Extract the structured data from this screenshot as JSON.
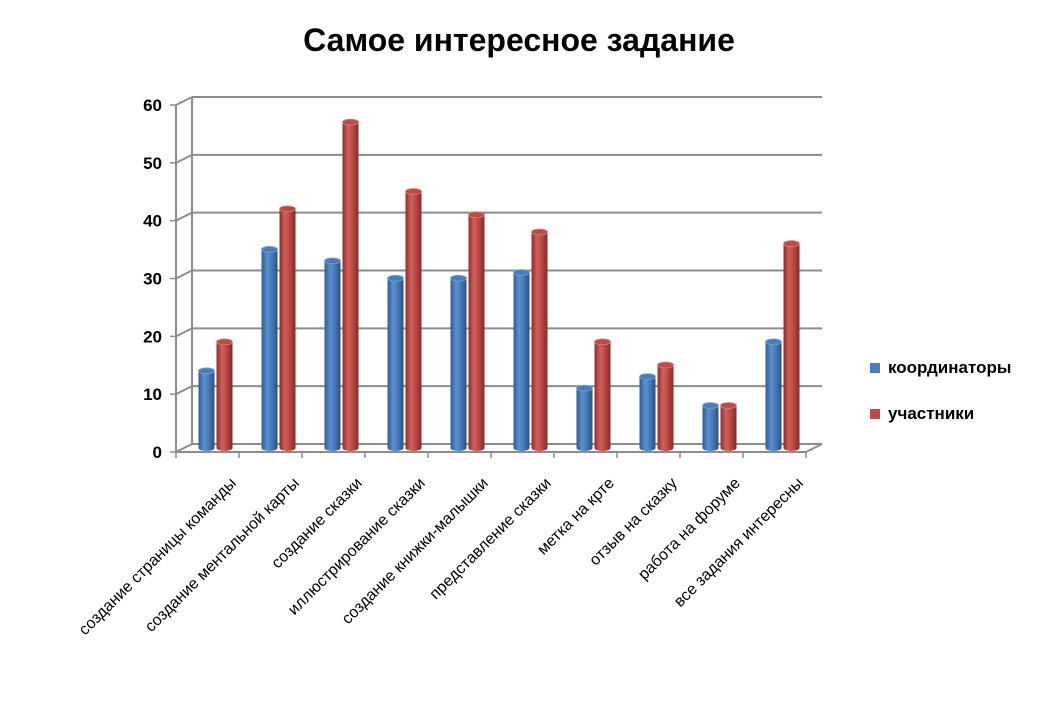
{
  "chart_data": {
    "type": "bar",
    "title": "Самое интересное задание",
    "categories": [
      "создание страницы команды",
      "создание ментальной карты",
      "создание сказки",
      "иллюстрирование сказки",
      "создание книжки-малышки",
      "представление сказки",
      "метка на крте",
      "отзыв на сказку",
      "работа на форуме",
      "все задания интересны"
    ],
    "series": [
      {
        "name": "координаторы",
        "color": "#4a7ebb",
        "values": [
          13,
          34,
          32,
          29,
          29,
          30,
          10,
          12,
          7,
          18
        ]
      },
      {
        "name": "участники",
        "color": "#be4b48",
        "values": [
          18,
          41,
          56,
          44,
          40,
          37,
          18,
          14,
          7,
          35
        ]
      }
    ],
    "ylim": [
      0,
      60
    ],
    "yticks": [
      "0",
      "10",
      "20",
      "30",
      "40",
      "50",
      "60"
    ],
    "grid": true,
    "legend_position": "right"
  }
}
